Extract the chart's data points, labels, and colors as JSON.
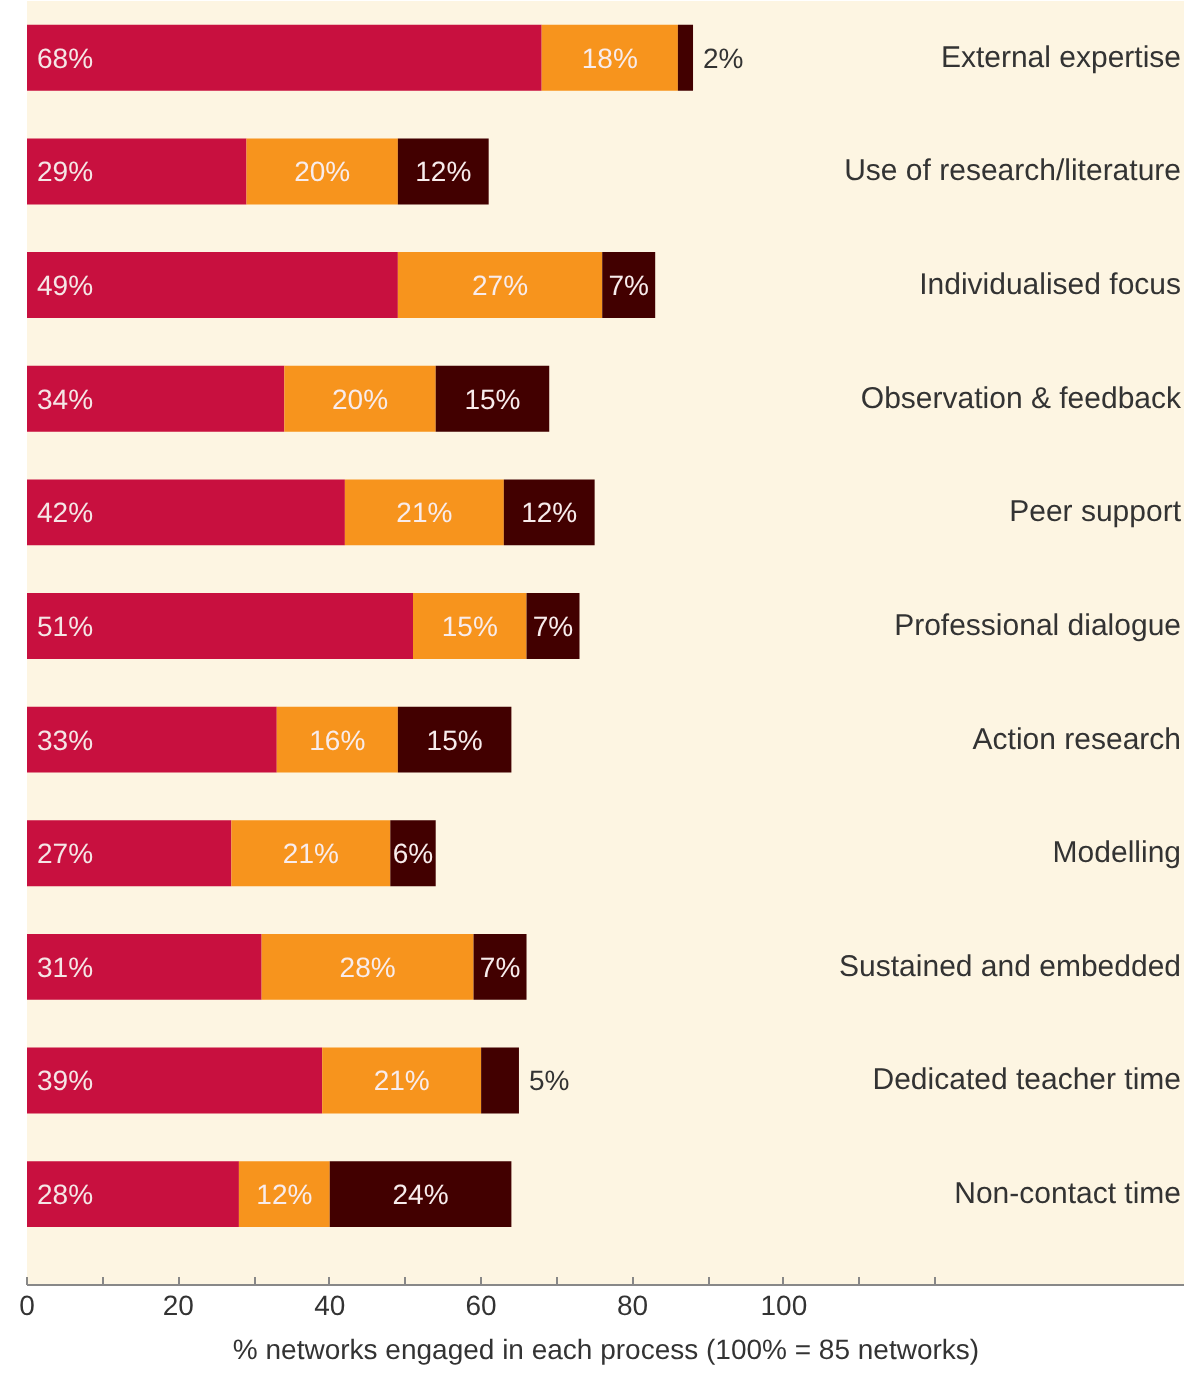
{
  "chart_data": {
    "type": "bar",
    "orientation": "horizontal",
    "stacked": true,
    "xlabel": "% networks engaged in each process (100% = 85 networks)",
    "categories": [
      "External expertise",
      "Use of research/literature",
      "Individualised focus",
      "Observation & feedback",
      "Peer support",
      "Professional dialogue",
      "Action research",
      "Modelling",
      "Sustained and embedded",
      "Dedicated teacher time",
      "Non-contact time"
    ],
    "series": [
      {
        "color": "#c8103f",
        "values": [
          68,
          29,
          49,
          34,
          42,
          51,
          33,
          27,
          31,
          39,
          28
        ],
        "value_labels": [
          "68%",
          "29%",
          "49%",
          "34%",
          "42%",
          "51%",
          "33%",
          "27%",
          "31%",
          "39%",
          "28%"
        ]
      },
      {
        "color": "#f7941d",
        "values": [
          18,
          20,
          27,
          20,
          21,
          15,
          16,
          21,
          28,
          21,
          12
        ],
        "value_labels": [
          "18%",
          "20%",
          "27%",
          "20%",
          "21%",
          "15%",
          "16%",
          "21%",
          "28%",
          "21%",
          "12%"
        ]
      },
      {
        "color": "#420000",
        "values": [
          2,
          12,
          7,
          15,
          12,
          7,
          15,
          6,
          7,
          5,
          24
        ],
        "value_labels": [
          "2%",
          "12%",
          "7%",
          "15%",
          "12%",
          "7%",
          "15%",
          "6%",
          "7%",
          "5%",
          "24%"
        ]
      }
    ],
    "xlim": [
      0,
      153
    ],
    "xticks": [
      0,
      {
        "value": 10,
        "label": null
      },
      20,
      {
        "value": 30,
        "label": null
      },
      40,
      {
        "value": 50,
        "label": null
      },
      60,
      {
        "value": 70,
        "label": null
      },
      80,
      {
        "value": 90,
        "label": null
      },
      100,
      {
        "value": 110,
        "label": null
      },
      {
        "value": 120,
        "label": null
      }
    ],
    "grid": false
  }
}
